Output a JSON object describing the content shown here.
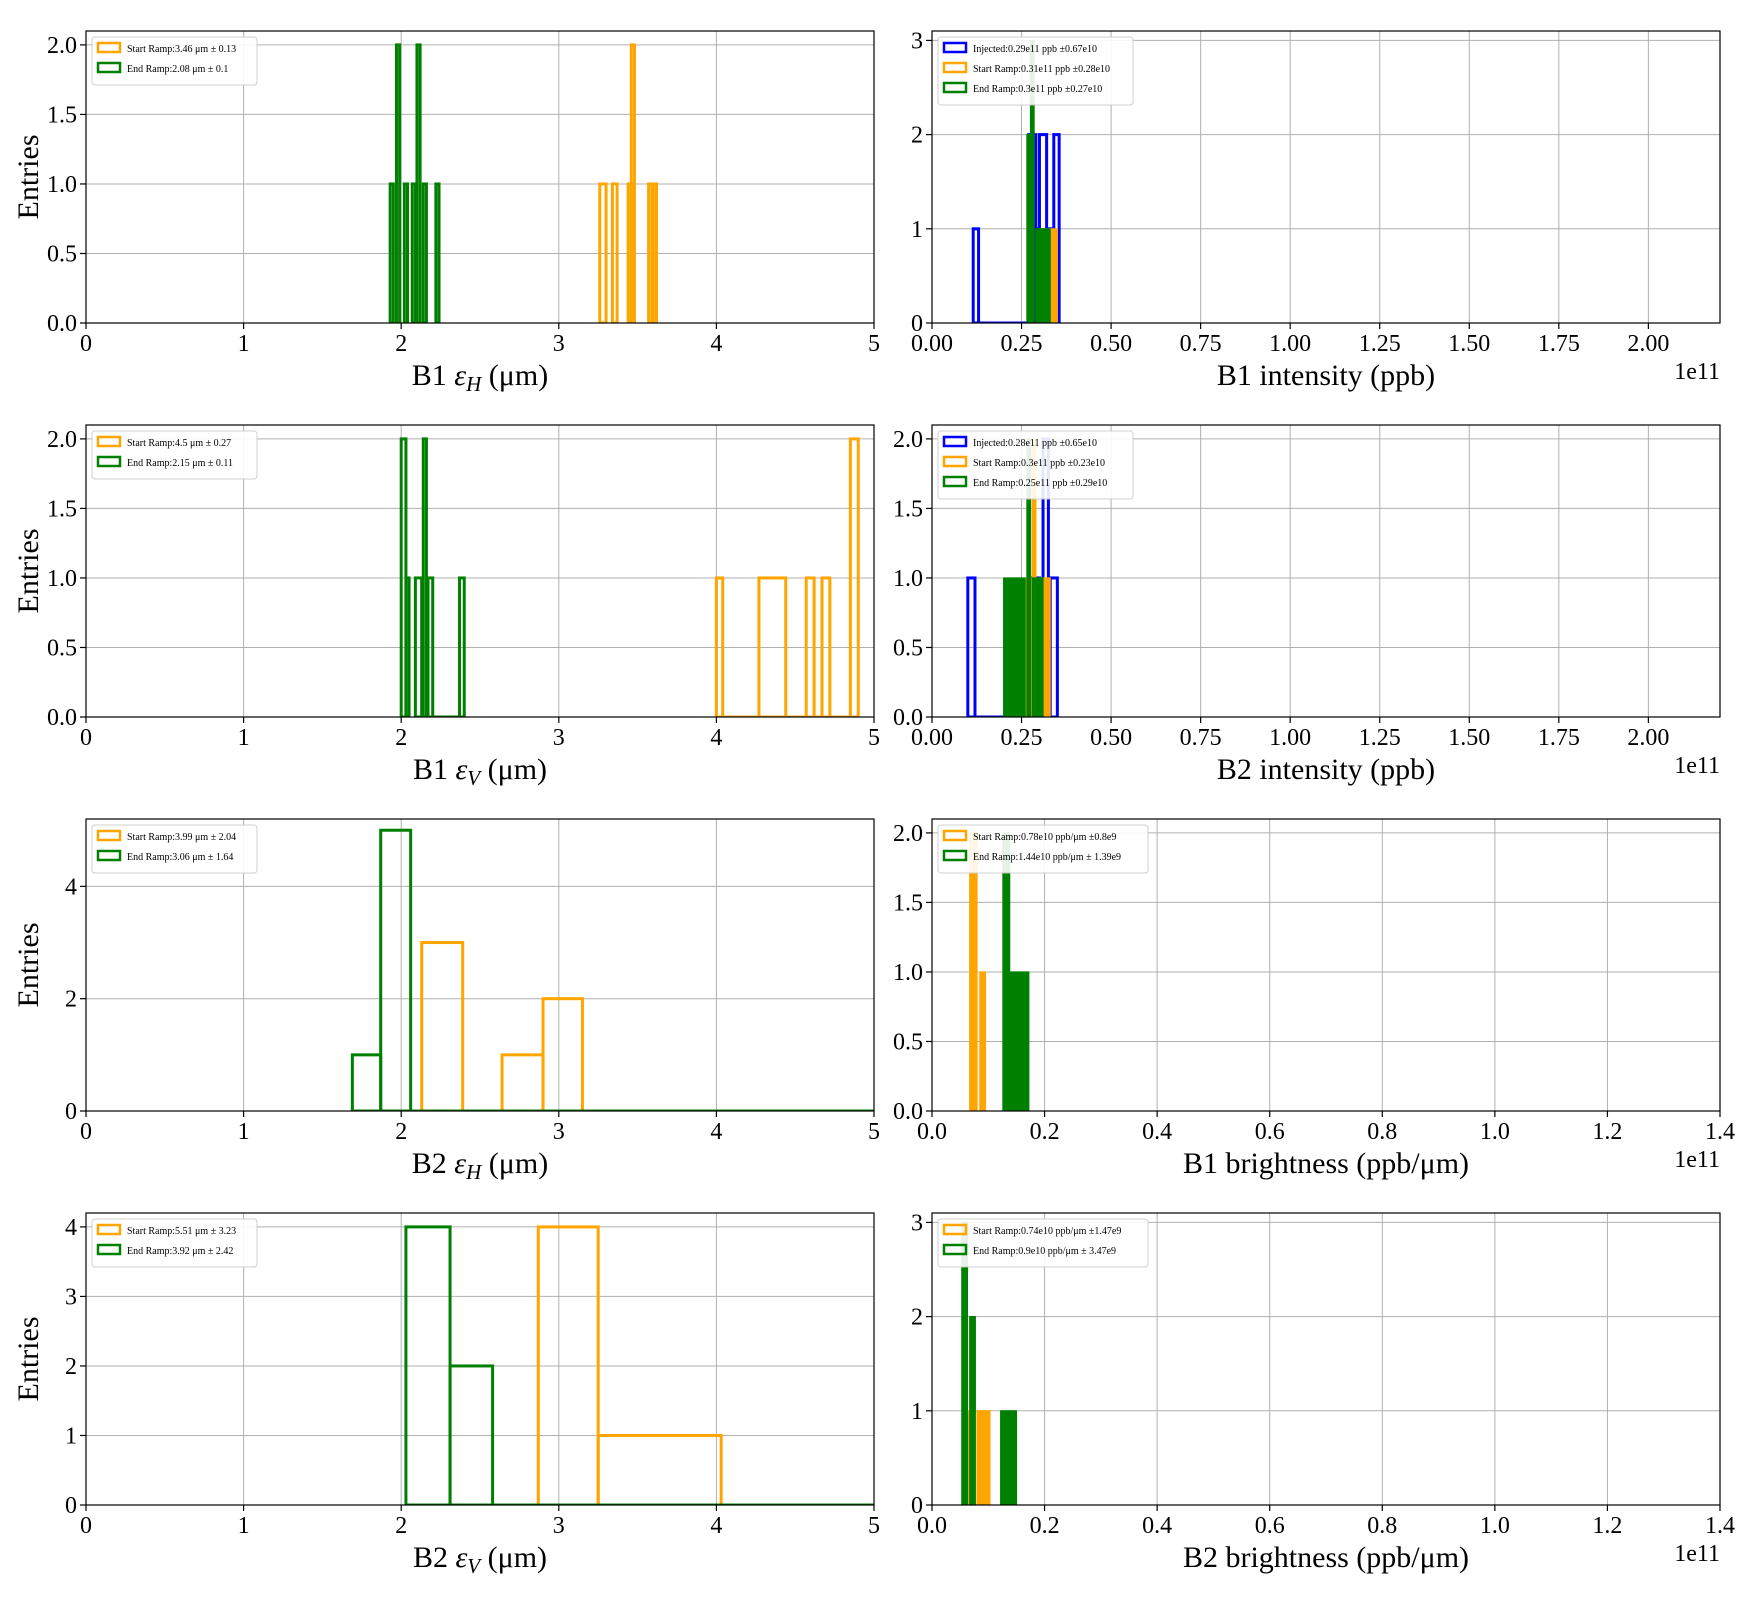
{
  "chart_data": [
    {
      "type": "histogram",
      "xlabel": "B1 εH (μm)",
      "ylabel": "Entries",
      "xlim": [
        0,
        5
      ],
      "ylim": [
        0,
        2.1
      ],
      "xticks": [
        "0",
        "1",
        "2",
        "3",
        "4",
        "5"
      ],
      "yticks": [
        "0.0",
        "0.5",
        "1.0",
        "1.5",
        "2.0"
      ],
      "offset_label": "",
      "legend": "top-left",
      "grid": true,
      "series": [
        {
          "name": "Start Ramp:3.46 μm ± 0.13",
          "color": "#ffa500",
          "fill": false,
          "bins": [
            [
              3.26,
              3.3,
              1
            ],
            [
              3.34,
              3.37,
              1
            ],
            [
              3.44,
              3.46,
              1
            ],
            [
              3.46,
              3.48,
              2
            ],
            [
              3.57,
              3.59,
              1
            ],
            [
              3.6,
              3.62,
              1
            ]
          ]
        },
        {
          "name": "End Ramp:2.08 μm ± 0.1",
          "color": "#008000",
          "fill": false,
          "bins": [
            [
              1.93,
              1.95,
              1
            ],
            [
              1.97,
              1.99,
              2
            ],
            [
              2.02,
              2.04,
              1
            ],
            [
              2.07,
              2.09,
              1
            ],
            [
              2.1,
              2.12,
              2
            ],
            [
              2.14,
              2.16,
              1
            ],
            [
              2.22,
              2.24,
              1
            ]
          ]
        }
      ]
    },
    {
      "type": "histogram",
      "xlabel": "B1 intensity (ppb)",
      "ylabel": "",
      "xlim": [
        0,
        2.2
      ],
      "ylim": [
        0,
        3.1
      ],
      "xticks": [
        "0.00",
        "0.25",
        "0.50",
        "0.75",
        "1.00",
        "1.25",
        "1.50",
        "1.75",
        "2.00"
      ],
      "yticks": [
        "0",
        "1",
        "2",
        "3"
      ],
      "offset_label": "1e11",
      "legend": "top-left",
      "grid": true,
      "series": [
        {
          "name": "Injected:0.29e11 ppb ±0.67e10",
          "color": "#0000ff",
          "fill": false,
          "bins": [
            [
              0.115,
              0.13,
              1
            ],
            [
              0.13,
              0.27,
              0
            ],
            [
              0.27,
              0.29,
              2
            ],
            [
              0.29,
              0.3,
              1
            ],
            [
              0.3,
              0.32,
              2
            ],
            [
              0.32,
              0.34,
              1
            ],
            [
              0.34,
              0.355,
              2
            ]
          ]
        },
        {
          "name": "Start Ramp:0.31e11 ppb ±0.28e10",
          "color": "#ffa500",
          "fill": true,
          "bins": [
            [
              0.3,
              0.31,
              1
            ],
            [
              0.31,
              0.33,
              1
            ],
            [
              0.33,
              0.35,
              1
            ]
          ]
        },
        {
          "name": "End Ramp:0.3e11 ppb ±0.27e10",
          "color": "#008000",
          "fill": true,
          "bins": [
            [
              0.265,
              0.275,
              2
            ],
            [
              0.275,
              0.285,
              3
            ],
            [
              0.29,
              0.3,
              1
            ],
            [
              0.3,
              0.33,
              1
            ]
          ]
        }
      ]
    },
    {
      "type": "histogram",
      "xlabel": "B1 εV (μm)",
      "ylabel": "Entries",
      "xlim": [
        0,
        5
      ],
      "ylim": [
        0,
        2.1
      ],
      "xticks": [
        "0",
        "1",
        "2",
        "3",
        "4",
        "5"
      ],
      "yticks": [
        "0.0",
        "0.5",
        "1.0",
        "1.5",
        "2.0"
      ],
      "offset_label": "",
      "legend": "top-left",
      "grid": true,
      "series": [
        {
          "name": "Start Ramp:4.5 μm ± 0.27",
          "color": "#ffa500",
          "fill": false,
          "bins": [
            [
              4.0,
              4.04,
              1
            ],
            [
              4.04,
              4.27,
              0
            ],
            [
              4.27,
              4.44,
              1
            ],
            [
              4.44,
              4.57,
              0
            ],
            [
              4.57,
              4.62,
              1
            ],
            [
              4.62,
              4.67,
              0
            ],
            [
              4.67,
              4.72,
              1
            ],
            [
              4.72,
              4.85,
              0
            ],
            [
              4.85,
              4.9,
              2
            ]
          ]
        },
        {
          "name": "End Ramp:2.15 μm ± 0.11",
          "color": "#008000",
          "fill": false,
          "bins": [
            [
              2.0,
              2.03,
              2
            ],
            [
              2.03,
              2.05,
              1
            ],
            [
              2.09,
              2.13,
              1
            ],
            [
              2.14,
              2.16,
              2
            ],
            [
              2.17,
              2.2,
              1
            ],
            [
              2.2,
              2.37,
              0
            ],
            [
              2.37,
              2.4,
              1
            ]
          ]
        }
      ]
    },
    {
      "type": "histogram",
      "xlabel": "B2 intensity (ppb)",
      "ylabel": "",
      "xlim": [
        0,
        2.2
      ],
      "ylim": [
        0,
        2.1
      ],
      "xticks": [
        "0.00",
        "0.25",
        "0.50",
        "0.75",
        "1.00",
        "1.25",
        "1.50",
        "1.75",
        "2.00"
      ],
      "yticks": [
        "0.0",
        "0.5",
        "1.0",
        "1.5",
        "2.0"
      ],
      "offset_label": "1e11",
      "legend": "top-left",
      "grid": true,
      "series": [
        {
          "name": "Injected:0.28e11 ppb ±0.65e10",
          "color": "#0000ff",
          "fill": false,
          "bins": [
            [
              0.1,
              0.12,
              1
            ],
            [
              0.12,
              0.2,
              0
            ],
            [
              0.28,
              0.3,
              1
            ],
            [
              0.31,
              0.325,
              2
            ],
            [
              0.33,
              0.35,
              1
            ]
          ]
        },
        {
          "name": "Start Ramp:0.3e11 ppb ±0.23e10",
          "color": "#ffa500",
          "fill": true,
          "bins": [
            [
              0.26,
              0.28,
              1
            ],
            [
              0.28,
              0.29,
              2
            ],
            [
              0.3,
              0.32,
              1
            ],
            [
              0.32,
              0.33,
              1
            ]
          ]
        },
        {
          "name": "End Ramp:0.25e11 ppb ±0.29e10",
          "color": "#008000",
          "fill": true,
          "bins": [
            [
              0.2,
              0.26,
              1
            ],
            [
              0.265,
              0.275,
              2
            ],
            [
              0.28,
              0.31,
              1
            ]
          ]
        }
      ]
    },
    {
      "type": "histogram",
      "xlabel": "B2 εH (μm)",
      "ylabel": "Entries",
      "xlim": [
        0,
        5
      ],
      "ylim": [
        0,
        5.2
      ],
      "xticks": [
        "0",
        "1",
        "2",
        "3",
        "4",
        "5"
      ],
      "yticks": [
        "0",
        "2",
        "4"
      ],
      "offset_label": "",
      "legend": "top-left",
      "grid": true,
      "series": [
        {
          "name": "Start Ramp:3.99 μm ± 2.04",
          "color": "#ffa500",
          "fill": false,
          "bins": [
            [
              2.13,
              2.39,
              3
            ],
            [
              2.39,
              2.64,
              0
            ],
            [
              2.64,
              2.9,
              1
            ],
            [
              2.9,
              3.15,
              2
            ],
            [
              3.15,
              5.0,
              0
            ]
          ]
        },
        {
          "name": "End Ramp:3.06 μm ± 1.64",
          "color": "#008000",
          "fill": false,
          "bins": [
            [
              1.69,
              1.87,
              1
            ],
            [
              1.87,
              2.06,
              5
            ],
            [
              2.06,
              5.0,
              0
            ]
          ]
        }
      ]
    },
    {
      "type": "histogram",
      "xlabel": "B1 brightness (ppb/μm)",
      "ylabel": "",
      "xlim": [
        0,
        1.4
      ],
      "ylim": [
        0,
        2.1
      ],
      "xticks": [
        "0.0",
        "0.2",
        "0.4",
        "0.6",
        "0.8",
        "1.0",
        "1.2",
        "1.4"
      ],
      "yticks": [
        "0.0",
        "0.5",
        "1.0",
        "1.5",
        "2.0"
      ],
      "offset_label": "1e11",
      "legend": "top-left",
      "grid": true,
      "series": [
        {
          "name": "Start Ramp:0.78e10 ppb/μm ±0.8e9",
          "color": "#ffa500",
          "fill": true,
          "bins": [
            [
              0.067,
              0.08,
              2
            ],
            [
              0.08,
              0.085,
              0
            ],
            [
              0.085,
              0.095,
              1
            ]
          ]
        },
        {
          "name": "End Ramp:1.44e10 ppb/μm ± 1.39e9",
          "color": "#008000",
          "fill": true,
          "bins": [
            [
              0.126,
              0.138,
              2
            ],
            [
              0.138,
              0.16,
              1
            ],
            [
              0.16,
              0.172,
              1
            ]
          ]
        }
      ]
    },
    {
      "type": "histogram",
      "xlabel": "B2 εV (μm)",
      "ylabel": "Entries",
      "xlim": [
        0,
        5
      ],
      "ylim": [
        0,
        4.2
      ],
      "xticks": [
        "0",
        "1",
        "2",
        "3",
        "4",
        "5"
      ],
      "yticks": [
        "0",
        "1",
        "2",
        "3",
        "4"
      ],
      "offset_label": "",
      "legend": "top-left",
      "grid": true,
      "series": [
        {
          "name": "Start Ramp:5.51 μm ± 3.23",
          "color": "#ffa500",
          "fill": false,
          "bins": [
            [
              2.87,
              3.25,
              4
            ],
            [
              3.25,
              4.03,
              1
            ],
            [
              4.03,
              5.0,
              0
            ]
          ]
        },
        {
          "name": "End Ramp:3.92 μm ± 2.42",
          "color": "#008000",
          "fill": false,
          "bins": [
            [
              2.03,
              2.31,
              4
            ],
            [
              2.31,
              2.58,
              2
            ],
            [
              2.58,
              5.0,
              0
            ]
          ]
        }
      ]
    },
    {
      "type": "histogram",
      "xlabel": "B2 brightness (ppb/μm)",
      "ylabel": "",
      "xlim": [
        0,
        1.4
      ],
      "ylim": [
        0,
        3.1
      ],
      "xticks": [
        "0.0",
        "0.2",
        "0.4",
        "0.6",
        "0.8",
        "1.0",
        "1.2",
        "1.4"
      ],
      "yticks": [
        "0",
        "1",
        "2",
        "3"
      ],
      "offset_label": "1e11",
      "legend": "top-left",
      "grid": true,
      "series": [
        {
          "name": "Start Ramp:0.74e10 ppb/μm ±1.47e9",
          "color": "#ffa500",
          "fill": true,
          "bins": [
            [
              0.06,
              0.07,
              1
            ],
            [
              0.08,
              0.103,
              1
            ]
          ]
        },
        {
          "name": "End Ramp:0.9e10 ppb/μm ± 3.47e9",
          "color": "#008000",
          "fill": true,
          "bins": [
            [
              0.053,
              0.063,
              3
            ],
            [
              0.067,
              0.077,
              2
            ],
            [
              0.122,
              0.15,
              1
            ]
          ]
        }
      ]
    }
  ]
}
